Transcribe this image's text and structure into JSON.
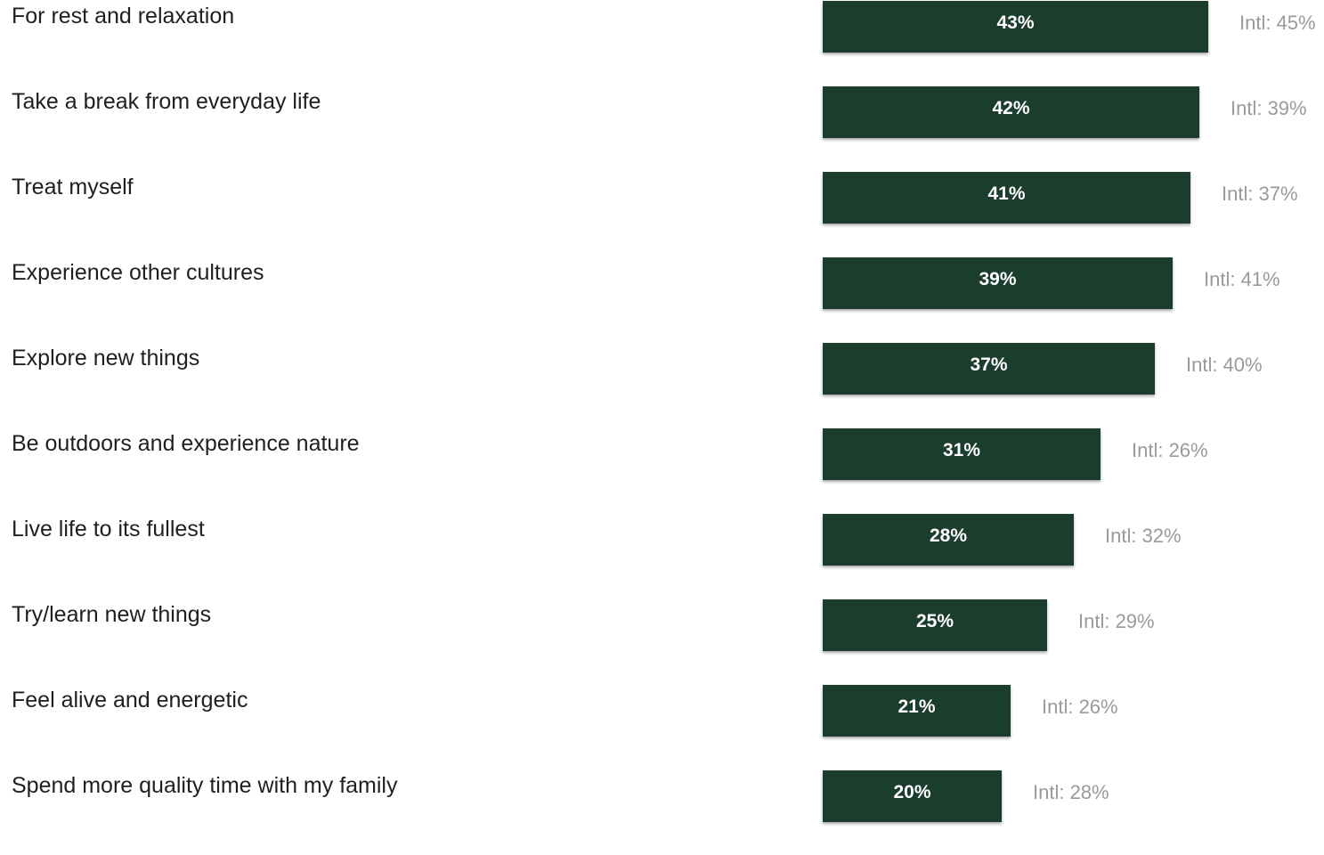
{
  "chart_data": {
    "type": "bar",
    "orientation": "horizontal",
    "title": "",
    "xlabel": "",
    "ylabel": "",
    "grid": false,
    "legend": "none",
    "categories": [
      "For rest and relaxation",
      "Take a break from everyday life",
      "Treat myself",
      "Experience other cultures",
      "Explore new things",
      "Be outdoors and experience nature",
      "Live life to its fullest",
      "Try/learn new things",
      "Feel alive and energetic",
      "Spend more quality time with my family"
    ],
    "values": [
      43,
      42,
      41,
      39,
      37,
      31,
      28,
      25,
      21,
      20
    ],
    "value_labels": [
      "43%",
      "42%",
      "41%",
      "39%",
      "37%",
      "31%",
      "28%",
      "25%",
      "21%",
      "20%"
    ],
    "comparison_labels": [
      "Intl: 45%",
      "Intl: 39%",
      "Intl: 37%",
      "Intl: 41%",
      "Intl: 40%",
      "Intl: 26%",
      "Intl: 32%",
      "Intl: 29%",
      "Intl: 26%",
      "Intl: 28%"
    ],
    "comparison_values": [
      45,
      39,
      37,
      41,
      40,
      26,
      32,
      29,
      26,
      28
    ],
    "colors": {
      "bar": "#1b3d2e",
      "bar_text": "#ffffff",
      "label_text": "#1f1f1f",
      "comparison_text": "#9a9a9a"
    }
  }
}
